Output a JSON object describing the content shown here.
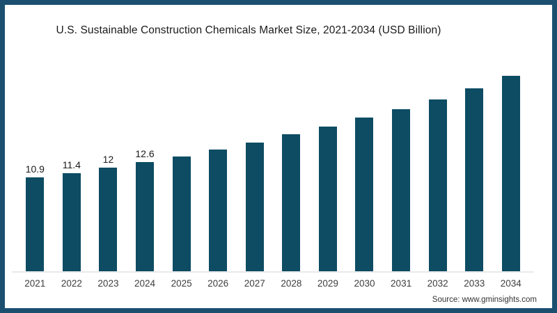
{
  "title": "U.S. Sustainable Construction Chemicals Market Size, 2021-2034 (USD Billion)",
  "source": "Source: www.gminsights.com",
  "colors": {
    "bar": "#0d4c63",
    "frame_border": "#1b4f70",
    "axis_line": "#e9e9e9",
    "title_text": "#1a1a1a",
    "tick_text": "#3d3d3d",
    "source_text": "#333333",
    "background": "#ffffff"
  },
  "chart_data": {
    "type": "bar",
    "title": "U.S. Sustainable Construction Chemicals Market Size, 2021-2034 (USD Billion)",
    "categories": [
      "2021",
      "2022",
      "2023",
      "2024",
      "2025",
      "2026",
      "2027",
      "2028",
      "2029",
      "2030",
      "2031",
      "2032",
      "2033",
      "2034"
    ],
    "values": [
      10.9,
      11.4,
      12,
      12.6,
      13.3,
      14.1,
      14.9,
      15.8,
      16.7,
      17.7,
      18.7,
      19.8,
      21.1,
      22.5
    ],
    "bar_labels": [
      "10.9",
      "11.4",
      "12",
      "12.6",
      "",
      "",
      "",
      "",
      "",
      "",
      "",
      "",
      "",
      ""
    ],
    "xlabel": "",
    "ylabel": "",
    "ylim": [
      0,
      24
    ],
    "grid": false,
    "legend": false,
    "bar_color": "#0d4c63"
  }
}
